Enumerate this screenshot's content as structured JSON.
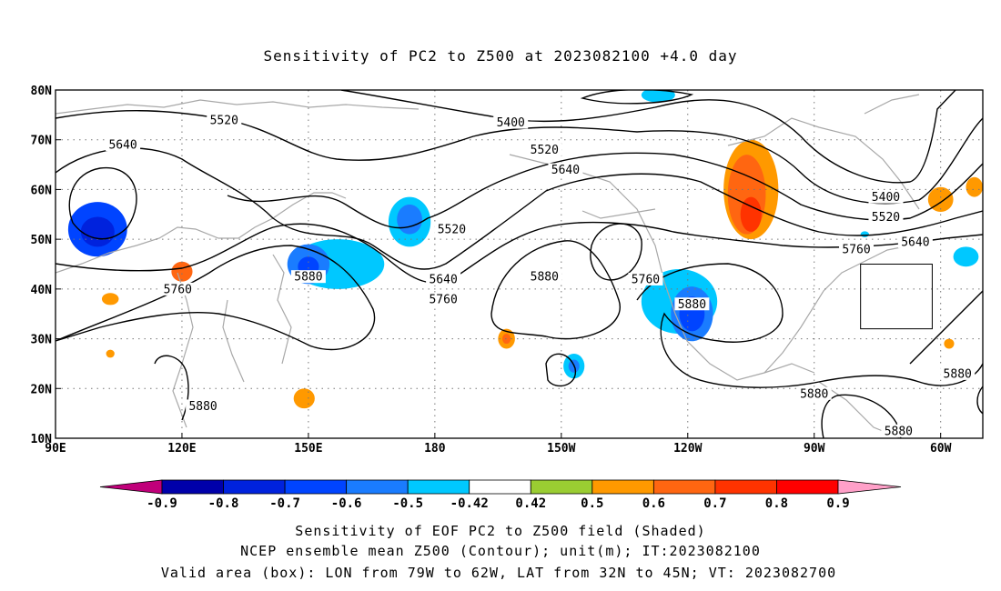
{
  "chart_data": {
    "type": "map-contour",
    "title": "Sensitivity of PC2 to Z500 at 2023082100 +4.0 day",
    "x_ticks": [
      "90E",
      "120E",
      "150E",
      "180",
      "150W",
      "120W",
      "90W",
      "60W"
    ],
    "y_ticks": [
      "10N",
      "20N",
      "30N",
      "40N",
      "50N",
      "60N",
      "70N",
      "80N"
    ],
    "xlim": [
      90,
      310
    ],
    "ylim": [
      10,
      80
    ],
    "grid": true,
    "contour_levels": [
      "5400",
      "5520",
      "5640",
      "5760",
      "5880"
    ],
    "contour_labels": [
      {
        "text": "5520",
        "lon": 130,
        "lat": 74
      },
      {
        "text": "5640",
        "lon": 106,
        "lat": 69
      },
      {
        "text": "5400",
        "lon": 198,
        "lat": 73.5
      },
      {
        "text": "5520",
        "lon": 206,
        "lat": 68
      },
      {
        "text": "5640",
        "lon": 211,
        "lat": 64
      },
      {
        "text": "5520",
        "lon": 184,
        "lat": 52
      },
      {
        "text": "5880",
        "lon": 150,
        "lat": 42.5
      },
      {
        "text": "5760",
        "lon": 119,
        "lat": 40
      },
      {
        "text": "5640",
        "lon": 182,
        "lat": 42
      },
      {
        "text": "5760",
        "lon": 182,
        "lat": 38
      },
      {
        "text": "5880",
        "lon": 206,
        "lat": 42.5
      },
      {
        "text": "5760",
        "lon": 230,
        "lat": 42
      },
      {
        "text": "5880",
        "lon": 241,
        "lat": 37
      },
      {
        "text": "5760",
        "lon": 280,
        "lat": 48
      },
      {
        "text": "5400",
        "lon": 287,
        "lat": 58.5
      },
      {
        "text": "5520",
        "lon": 287,
        "lat": 54.5
      },
      {
        "text": "5640",
        "lon": 294,
        "lat": 49.5
      },
      {
        "text": "5880",
        "lon": 270,
        "lat": 19
      },
      {
        "text": "5880",
        "lon": 125,
        "lat": 16.5
      },
      {
        "text": "5880",
        "lon": 304,
        "lat": 23
      },
      {
        "text": "5880",
        "lon": 290,
        "lat": 11.5
      }
    ],
    "shaded_areas": [
      {
        "lon": 100,
        "lat": 52,
        "rx": 7,
        "ry": 5.5,
        "value": -0.7
      },
      {
        "lon": 100,
        "lat": 51.5,
        "rx": 4,
        "ry": 3,
        "value": -0.8
      },
      {
        "lon": 120,
        "lat": 43.5,
        "rx": 2.5,
        "ry": 2,
        "value": 0.6
      },
      {
        "lon": 103,
        "lat": 38,
        "rx": 2,
        "ry": 1.2,
        "value": 0.5
      },
      {
        "lon": 157,
        "lat": 45,
        "rx": 11,
        "ry": 5,
        "value": -0.5
      },
      {
        "lon": 150,
        "lat": 45,
        "rx": 5,
        "ry": 4,
        "value": -0.6
      },
      {
        "lon": 150,
        "lat": 44.5,
        "rx": 2.5,
        "ry": 2,
        "value": -0.7
      },
      {
        "lon": 174,
        "lat": 53.5,
        "rx": 5,
        "ry": 5,
        "value": -0.5
      },
      {
        "lon": 174,
        "lat": 54,
        "rx": 3,
        "ry": 3,
        "value": -0.6
      },
      {
        "lon": 197,
        "lat": 30,
        "rx": 2,
        "ry": 2,
        "value": 0.5
      },
      {
        "lon": 197,
        "lat": 30,
        "rx": 1,
        "ry": 1,
        "value": 0.6
      },
      {
        "lon": 213,
        "lat": 24.5,
        "rx": 2.5,
        "ry": 2.5,
        "value": -0.5
      },
      {
        "lon": 213,
        "lat": 24.5,
        "rx": 1.3,
        "ry": 1.3,
        "value": -0.6
      },
      {
        "lon": 238,
        "lat": 37.5,
        "rx": 9,
        "ry": 6.5,
        "value": -0.5
      },
      {
        "lon": 241,
        "lat": 35,
        "rx": 5,
        "ry": 5.5,
        "value": -0.6
      },
      {
        "lon": 241,
        "lat": 35,
        "rx": 3,
        "ry": 3.5,
        "value": -0.7
      },
      {
        "lon": 255,
        "lat": 60,
        "rx": 6.5,
        "ry": 10,
        "value": 0.5
      },
      {
        "lon": 254,
        "lat": 59,
        "rx": 4.5,
        "ry": 8,
        "value": 0.6
      },
      {
        "lon": 255,
        "lat": 55,
        "rx": 2.5,
        "ry": 3.5,
        "value": 0.7
      },
      {
        "lon": 233,
        "lat": 79,
        "rx": 4,
        "ry": 1.5,
        "value": -0.5
      },
      {
        "lon": 300,
        "lat": 58,
        "rx": 3,
        "ry": 2.5,
        "value": 0.5
      },
      {
        "lon": 306,
        "lat": 46.5,
        "rx": 3,
        "ry": 2,
        "value": -0.5
      },
      {
        "lon": 308,
        "lat": 60.5,
        "rx": 2,
        "ry": 2,
        "value": 0.5
      },
      {
        "lon": 302,
        "lat": 29,
        "rx": 1.2,
        "ry": 1,
        "value": 0.5
      },
      {
        "lon": 282,
        "lat": 51,
        "rx": 1,
        "ry": 0.6,
        "value": -0.5
      },
      {
        "lon": 149,
        "lat": 18,
        "rx": 2.5,
        "ry": 2,
        "value": 0.5
      },
      {
        "lon": 103,
        "lat": 27,
        "rx": 1,
        "ry": 0.8,
        "value": 0.5
      }
    ],
    "valid_area_box": {
      "lon_min": 281,
      "lon_max": 298,
      "lat_min": 32,
      "lat_max": 45
    },
    "colorbar": {
      "labels": [
        "-0.9",
        "-0.8",
        "-0.7",
        "-0.6",
        "-0.5",
        "-0.42",
        "0.42",
        "0.5",
        "0.6",
        "0.7",
        "0.8",
        "0.9"
      ],
      "colors": [
        "#0000aa",
        "#0022dd",
        "#0044ff",
        "#1a7cff",
        "#00c8ff",
        "#ffffff",
        "#9acd32",
        "#ff9900",
        "#ff6611",
        "#ff3300",
        "#ff0000"
      ],
      "under_color": "#c0007a",
      "over_color": "#ffa0c8"
    }
  },
  "captions": [
    "Sensitivity of EOF PC2 to Z500 field (Shaded)",
    "NCEP ensemble mean Z500 (Contour); unit(m); IT:2023082100",
    "Valid area (box): LON from 79W to 62W, LAT from 32N to 45N; VT: 2023082700"
  ]
}
